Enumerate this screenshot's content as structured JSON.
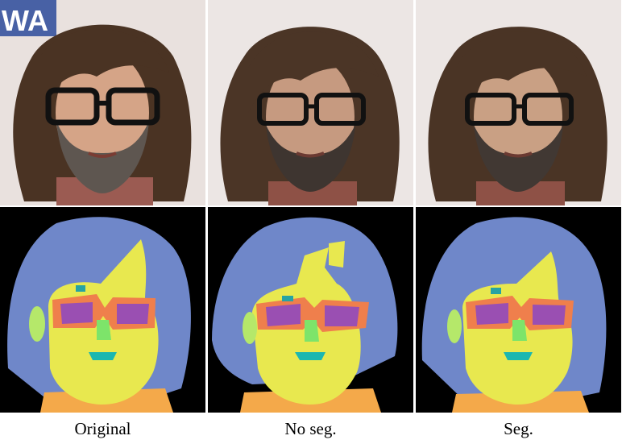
{
  "columns": [
    {
      "label": "Original"
    },
    {
      "label": "No seg."
    },
    {
      "label": "Seg."
    }
  ],
  "photo_backdrop_text": "WA",
  "segmentation_colors": {
    "background": "#000000",
    "hair": "#6f87c9",
    "skin": "#e8e84f",
    "nose": "#7de46a",
    "eyeglasses": "#ef7f4c",
    "eye": "#9a4fb2",
    "brow": "#27a3a3",
    "mouth": "#1bb7b0",
    "ear": "#b5e86a",
    "neck_clothes": "#f4a94a"
  }
}
